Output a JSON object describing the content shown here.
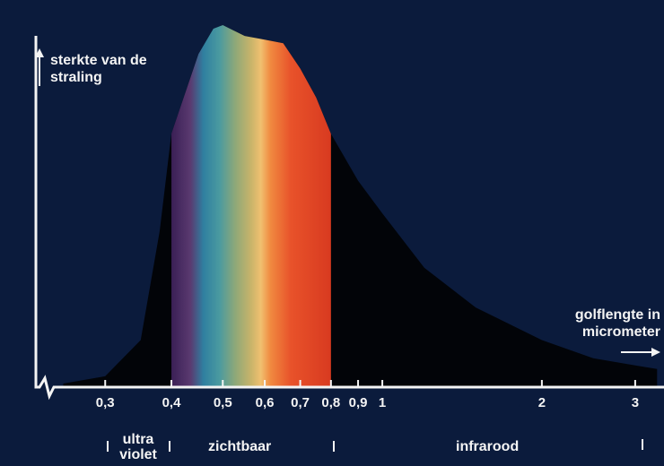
{
  "chart_data": {
    "type": "area",
    "y_label": "sterkte van de straling",
    "x_label": "golflengte in micrometer",
    "x": [
      0.25,
      0.3,
      0.35,
      0.38,
      0.4,
      0.45,
      0.48,
      0.5,
      0.55,
      0.6,
      0.65,
      0.7,
      0.75,
      0.8,
      0.9,
      1,
      1.2,
      1.5,
      2,
      2.5,
      3,
      3.3
    ],
    "values": [
      1,
      3,
      13,
      43,
      70,
      92,
      99,
      100,
      97,
      96,
      95,
      88,
      80,
      70,
      57,
      48,
      33,
      22,
      13,
      8,
      6,
      5
    ],
    "xlim": [
      0.24,
      3.4
    ],
    "ylim": [
      0,
      100
    ],
    "xscale": "log",
    "xticks": [
      {
        "value": 0.3,
        "label": "0,3"
      },
      {
        "value": 0.4,
        "label": "0,4"
      },
      {
        "value": 0.5,
        "label": "0,5"
      },
      {
        "value": 0.6,
        "label": "0,6"
      },
      {
        "value": 0.7,
        "label": "0,7"
      },
      {
        "value": 0.8,
        "label": "0,8"
      },
      {
        "value": 0.9,
        "label": "0,9"
      },
      1,
      2,
      3
    ],
    "regions": [
      "ultra violet",
      "zichtbaar",
      "infrarood"
    ],
    "color": "#020408"
  }
}
